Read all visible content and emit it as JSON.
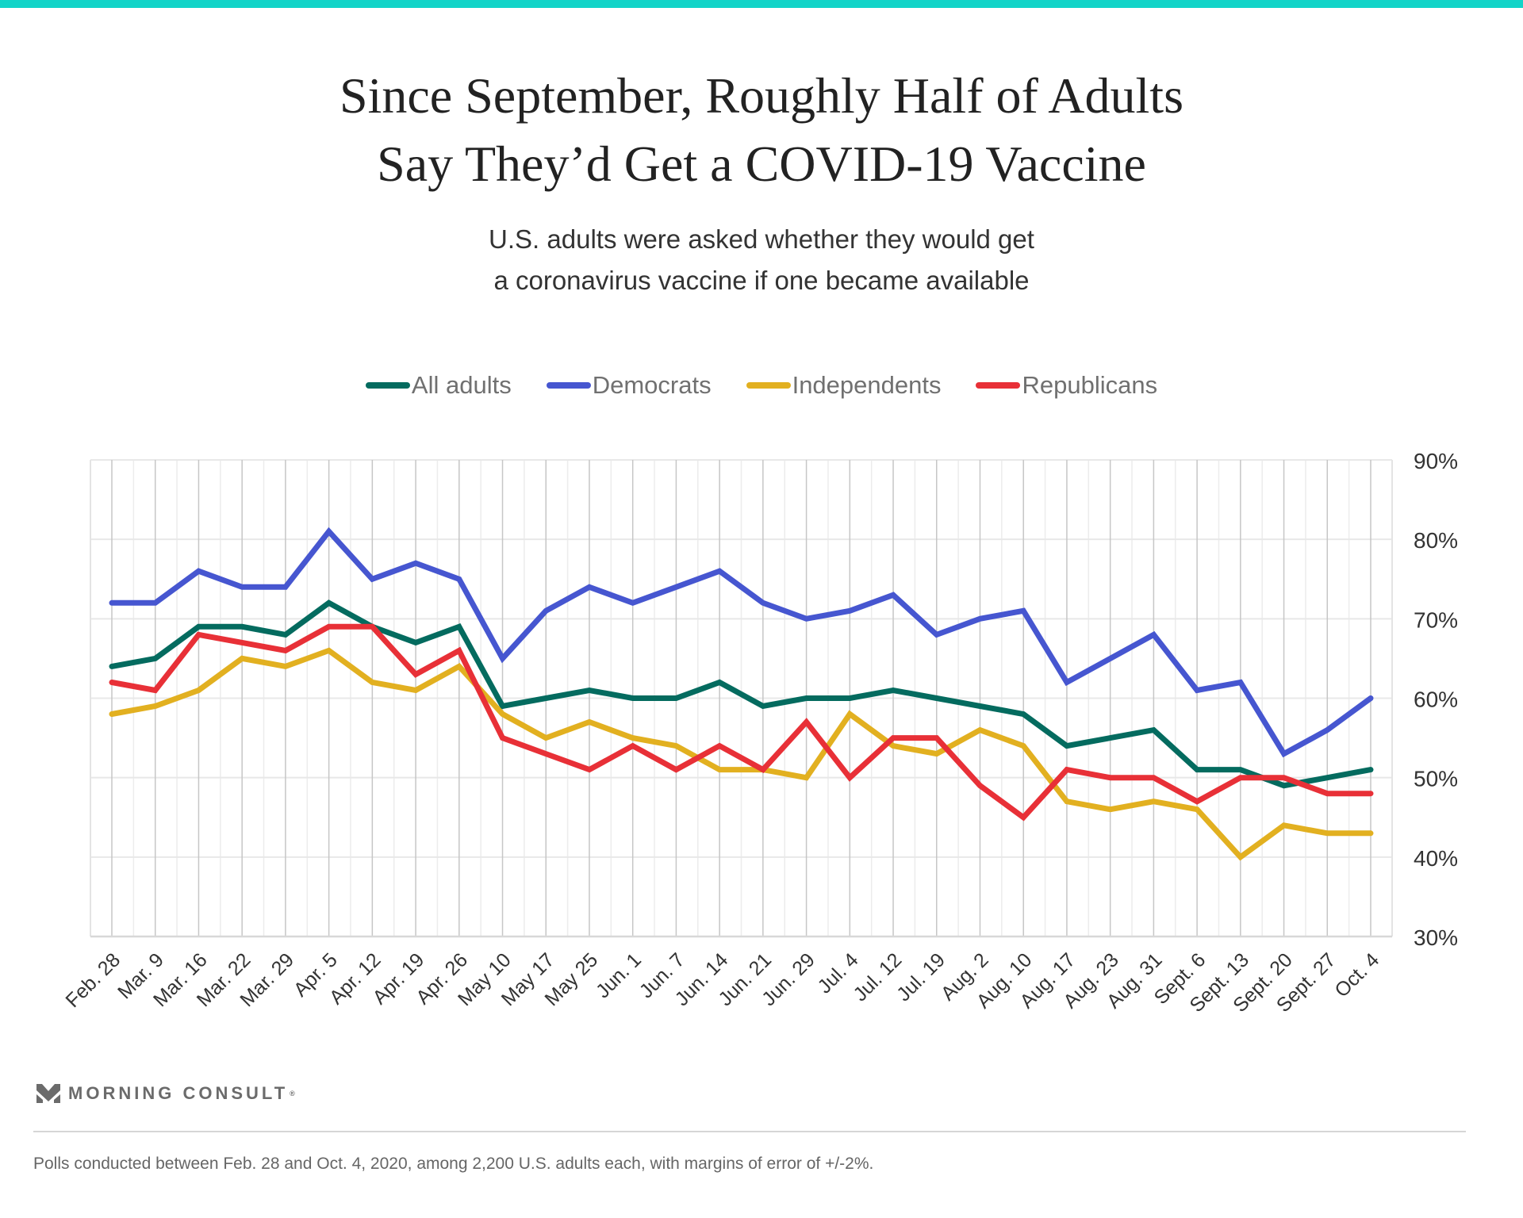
{
  "header": {
    "title_line1": "Since September, Roughly Half of Adults",
    "title_line2": "Say They’d Get a COVID-19 Vaccine",
    "subtitle_line1": "U.S. adults were asked whether they would get",
    "subtitle_line2": "a coronavirus vaccine if one became available"
  },
  "legend": [
    {
      "name": "All adults",
      "color": "#046b5f"
    },
    {
      "name": "Democrats",
      "color": "#4656d0"
    },
    {
      "name": "Independents",
      "color": "#e2b020"
    },
    {
      "name": "Republicans",
      "color": "#e83037"
    }
  ],
  "chart_data": {
    "type": "line",
    "title": "Since September, Roughly Half of Adults Say They’d Get a COVID-19 Vaccine",
    "subtitle": "U.S. adults were asked whether they would get a coronavirus vaccine if one became available",
    "xlabel": "",
    "ylabel": "",
    "y_axis_side": "right",
    "ylim": [
      30,
      90
    ],
    "y_ticks": [
      30,
      40,
      50,
      60,
      70,
      80,
      90
    ],
    "y_tick_labels": [
      "30%",
      "40%",
      "50%",
      "60%",
      "70%",
      "80%",
      "90%"
    ],
    "grid": true,
    "legend_position": "top-center",
    "categories": [
      "Feb. 28",
      "Mar. 9",
      "Mar. 16",
      "Mar. 22",
      "Mar. 29",
      "Apr. 5",
      "Apr. 12",
      "Apr. 19",
      "Apr. 26",
      "May 10",
      "May 17",
      "May 25",
      "Jun. 1",
      "Jun. 7",
      "Jun. 14",
      "Jun. 21",
      "Jun. 29",
      "Jul. 4",
      "Jul. 12",
      "Jul. 19",
      "Aug. 2",
      "Aug. 10",
      "Aug. 17",
      "Aug. 23",
      "Aug. 31",
      "Sept. 6",
      "Sept. 13",
      "Sept. 20",
      "Sept. 27",
      "Oct. 4"
    ],
    "series": [
      {
        "name": "All adults",
        "color": "#046b5f",
        "values": [
          64,
          65,
          69,
          69,
          68,
          72,
          69,
          67,
          69,
          59,
          60,
          61,
          60,
          60,
          62,
          59,
          60,
          60,
          61,
          60,
          59,
          58,
          54,
          55,
          56,
          51,
          51,
          49,
          50,
          51
        ]
      },
      {
        "name": "Democrats",
        "color": "#4656d0",
        "values": [
          72,
          72,
          76,
          74,
          74,
          81,
          75,
          77,
          75,
          65,
          71,
          74,
          72,
          74,
          76,
          72,
          70,
          71,
          73,
          68,
          70,
          71,
          62,
          65,
          68,
          61,
          62,
          53,
          56,
          60
        ]
      },
      {
        "name": "Independents",
        "color": "#e2b020",
        "values": [
          58,
          59,
          61,
          65,
          64,
          66,
          62,
          61,
          64,
          58,
          55,
          57,
          55,
          54,
          51,
          51,
          50,
          58,
          54,
          53,
          56,
          54,
          47,
          46,
          47,
          46,
          40,
          44,
          43,
          43
        ]
      },
      {
        "name": "Republicans",
        "color": "#e83037",
        "values": [
          62,
          61,
          68,
          67,
          66,
          69,
          69,
          63,
          66,
          55,
          53,
          51,
          54,
          51,
          54,
          51,
          57,
          50,
          55,
          55,
          49,
          45,
          51,
          50,
          50,
          47,
          50,
          50,
          48,
          48
        ]
      }
    ]
  },
  "branding": {
    "logo_text": "MORNING CONSULT",
    "logo_mark": "®"
  },
  "footnote": "Polls conducted between Feb. 28 and Oct. 4, 2020, among 2,200 U.S. adults each, with margins of error of +/-2%."
}
